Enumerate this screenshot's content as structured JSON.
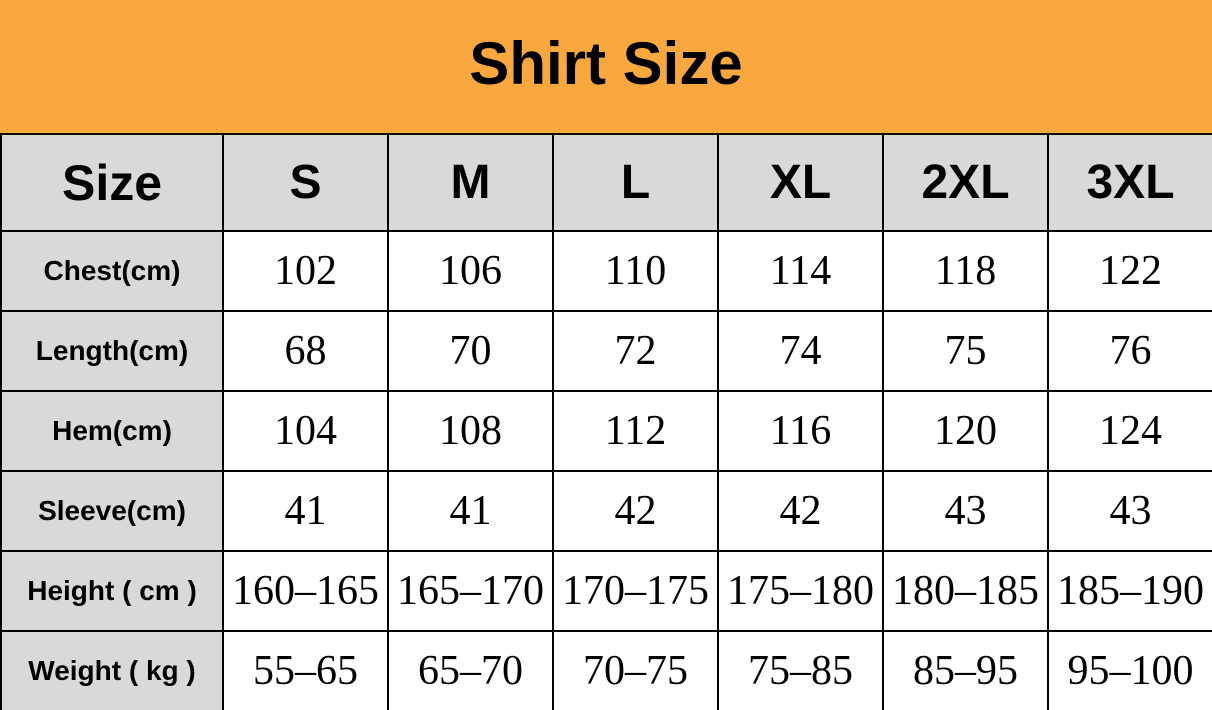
{
  "banner": {
    "title": "Shirt Size"
  },
  "colors": {
    "banner_background": "#F8A83E",
    "header_cell_background": "#D9D9D9",
    "border": "#000000",
    "data_cell_background": "#FFFFFF",
    "text": "#000000"
  },
  "table": {
    "corner_label": "Size",
    "columns": [
      "S",
      "M",
      "L",
      "XL",
      "2XL",
      "3XL"
    ],
    "rows": [
      {
        "label": "Chest(cm)",
        "values": [
          "102",
          "106",
          "110",
          "114",
          "118",
          "122"
        ]
      },
      {
        "label": "Length(cm)",
        "values": [
          "68",
          "70",
          "72",
          "74",
          "75",
          "76"
        ]
      },
      {
        "label": "Hem(cm)",
        "values": [
          "104",
          "108",
          "112",
          "116",
          "120",
          "124"
        ]
      },
      {
        "label": "Sleeve(cm)",
        "values": [
          "41",
          "41",
          "42",
          "42",
          "43",
          "43"
        ]
      },
      {
        "label": "Height ( cm )",
        "values": [
          "160–165",
          "165–170",
          "170–175",
          "175–180",
          "180–185",
          "185–190"
        ]
      },
      {
        "label": "Weight ( kg )",
        "values": [
          "55–65",
          "65–70",
          "70–75",
          "75–85",
          "85–95",
          "95–100"
        ]
      }
    ]
  },
  "chart_data": {
    "type": "table",
    "title": "Shirt Size",
    "columns": [
      "Size",
      "S",
      "M",
      "L",
      "XL",
      "2XL",
      "3XL"
    ],
    "rows": [
      [
        "Chest(cm)",
        "102",
        "106",
        "110",
        "114",
        "118",
        "122"
      ],
      [
        "Length(cm)",
        "68",
        "70",
        "72",
        "74",
        "75",
        "76"
      ],
      [
        "Hem(cm)",
        "104",
        "108",
        "112",
        "116",
        "120",
        "124"
      ],
      [
        "Sleeve(cm)",
        "41",
        "41",
        "42",
        "42",
        "43",
        "43"
      ],
      [
        "Height ( cm )",
        "160–165",
        "165–170",
        "170–175",
        "175–180",
        "180–185",
        "185–190"
      ],
      [
        "Weight ( kg )",
        "55–65",
        "65–70",
        "70–75",
        "75–85",
        "85–95",
        "95–100"
      ]
    ]
  }
}
